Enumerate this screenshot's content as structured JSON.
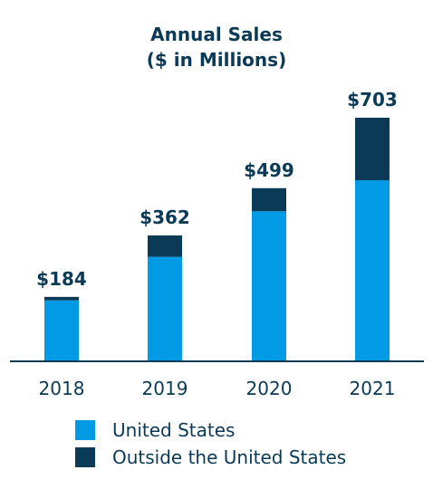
{
  "chart_data": {
    "type": "bar",
    "stacked": true,
    "title": "Annual Sales",
    "subtitle": "($ in Millions)",
    "categories": [
      "2018",
      "2019",
      "2020",
      "2021"
    ],
    "series": [
      {
        "name": "United States",
        "values": [
          174,
          300,
          432,
          522
        ],
        "color": "#009be4"
      },
      {
        "name": "Outside the United States",
        "values": [
          10,
          62,
          67,
          181
        ],
        "color": "#0b3a57"
      }
    ],
    "totals": [
      184,
      362,
      499,
      703
    ],
    "total_labels": [
      "$184",
      "$362",
      "$499",
      "$703"
    ],
    "ylim": [
      0,
      720
    ],
    "grid": false,
    "legend_position": "bottom"
  },
  "colors": {
    "text": "#0b3a57",
    "axis": "#0b3a57"
  }
}
